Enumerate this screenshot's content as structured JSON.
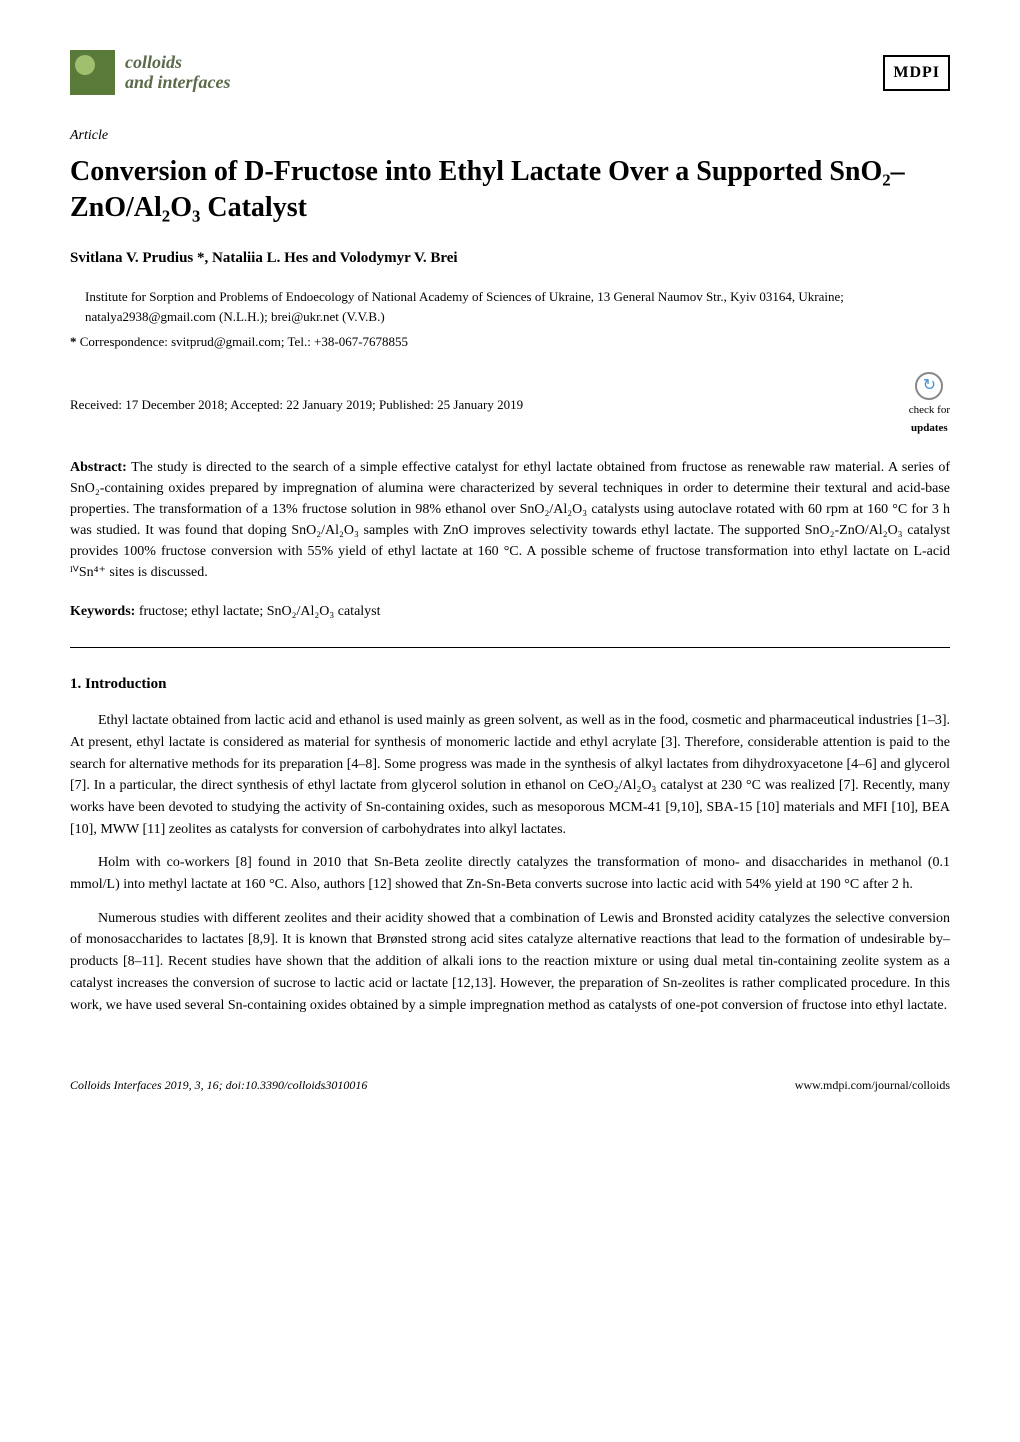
{
  "colors": {
    "text": "#000000",
    "background": "#ffffff",
    "link": "#2060c0",
    "logo_green": "#5a7a3a",
    "logo_light": "#a0c070"
  },
  "typography": {
    "title_fontsize": 28,
    "body_fontsize": 14,
    "small_fontsize": 13,
    "footer_fontsize": 12
  },
  "journal": {
    "name_line1": "colloids",
    "name_line2": "and interfaces",
    "publisher": "MDPI"
  },
  "article_type": "Article",
  "title": "Conversion of D-Fructose into Ethyl Lactate Over a Supported SnO₂–ZnO/Al₂O₃ Catalyst",
  "authors": "Svitlana V. Prudius *, Nataliia L. Hes and Volodymyr V. Brei",
  "affiliation": "Institute for Sorption and Problems of Endoecology of National Academy of Sciences of Ukraine, 13 General Naumov Str., Kyiv 03164, Ukraine; natalya2938@gmail.com (N.L.H.); brei@ukr.net (V.V.B.)",
  "correspondence_label": "*",
  "correspondence": "Correspondence: svitprud@gmail.com; Tel.: +38-067-7678855",
  "dates": "Received: 17 December 2018; Accepted: 22 January 2019; Published: 25 January 2019",
  "check_updates": {
    "line1": "check for",
    "line2": "updates"
  },
  "abstract_label": "Abstract:",
  "abstract": "The study is directed to the search of a simple effective catalyst for ethyl lactate obtained from fructose as renewable raw material. A series of SnO₂-containing oxides prepared by impregnation of alumina were characterized by several techniques in order to determine their textural and acid-base properties. The transformation of a 13% fructose solution in 98% ethanol over SnO₂/Al₂O₃ catalysts using autoclave rotated with 60 rpm at 160 °C for 3 h was studied. It was found that doping SnO₂/Al₂O₃ samples with ZnO improves selectivity towards ethyl lactate. The supported SnO₂-ZnO/Al₂O₃ catalyst provides 100% fructose conversion with 55% yield of ethyl lactate at 160 °C. A possible scheme of fructose transformation into ethyl lactate on L-acid ᴵⱽSn⁴⁺ sites is discussed.",
  "keywords_label": "Keywords:",
  "keywords": "fructose; ethyl lactate; SnO₂/Al₂O₃ catalyst",
  "section1_heading": "1. Introduction",
  "para1": "Ethyl lactate obtained from lactic acid and ethanol is used mainly as green solvent, as well as in the food, cosmetic and pharmaceutical industries [1–3]. At present, ethyl lactate is considered as material for synthesis of monomeric lactide and ethyl acrylate [3]. Therefore, considerable attention is paid to the search for alternative methods for its preparation [4–8]. Some progress was made in the synthesis of alkyl lactates from dihydroxyacetone [4–6] and glycerol [7]. In a particular, the direct synthesis of ethyl lactate from glycerol solution in ethanol on CeO₂/Al₂O₃ catalyst at 230 °C was realized [7]. Recently, many works have been devoted to studying the activity of Sn-containing oxides, such as mesoporous MCM-41 [9,10], SBA-15 [10] materials and MFI [10], BEA [10], MWW [11] zeolites as catalysts for conversion of carbohydrates into alkyl lactates.",
  "para2": "Holm with co-workers [8] found in 2010 that Sn-Beta zeolite directly catalyzes the transformation of mono- and disaccharides in methanol (0.1 mmol/L) into methyl lactate at 160 °C. Also, authors [12] showed that Zn-Sn-Beta converts sucrose into lactic acid with 54% yield at 190 °C after 2 h.",
  "para3": "Numerous studies with different zeolites and their acidity showed that a combination of Lewis and Bronsted acidity catalyzes the selective conversion of monosaccharides to lactates [8,9]. It is known that Brønsted strong acid sites catalyze alternative reactions that lead to the formation of undesirable by–products [8–11]. Recent studies have shown that the addition of alkali ions to the reaction mixture or using dual metal tin-containing zeolite system as a catalyst increases the conversion of sucrose to lactic acid or lactate [12,13]. However, the preparation of Sn-zeolites is rather complicated procedure. In this work, we have used several Sn-containing oxides obtained by a simple impregnation method as catalysts of one-pot conversion of fructose into ethyl lactate.",
  "footer": {
    "left": "Colloids Interfaces 2019, 3, 16; doi:10.3390/colloids3010016",
    "right": "www.mdpi.com/journal/colloids"
  }
}
